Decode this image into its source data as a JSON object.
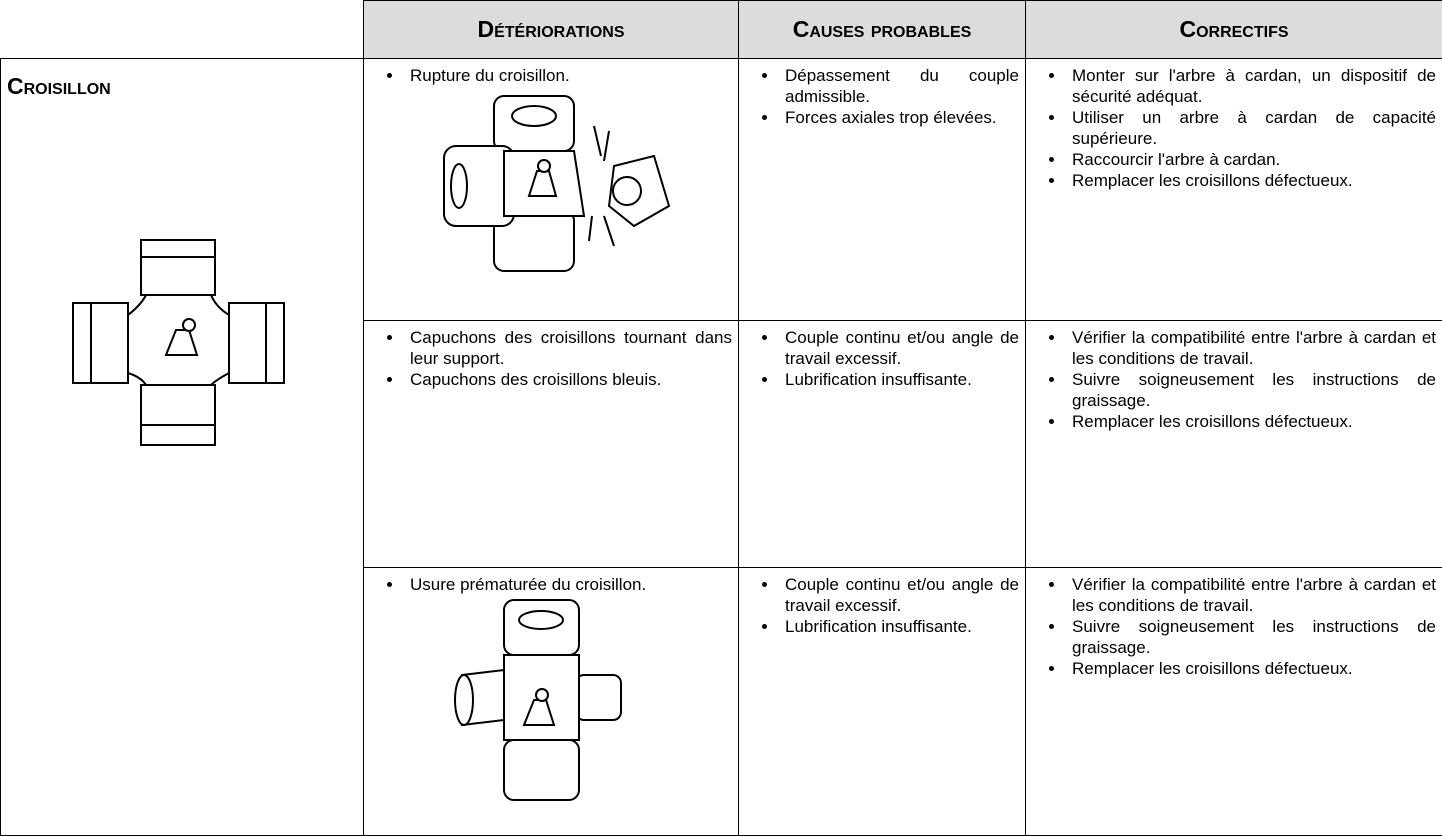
{
  "table": {
    "headers": [
      "Détériorations",
      "Causes probables",
      "Correctifs"
    ],
    "section": "Croisillon",
    "rows": [
      {
        "deteriorations": [
          "Rupture du croisillon."
        ],
        "causes": [
          "Dépassement du couple admissible.",
          "Forces axiales trop élevées."
        ],
        "correctifs": [
          "Monter sur l'arbre à cardan, un dispositif de sécurité adéquat.",
          "Utiliser un arbre à cardan de capacité supérieure.",
          "Raccourcir l'arbre à cardan.",
          "Remplacer les croisillons défectueux."
        ]
      },
      {
        "deteriorations": [
          "Capuchons des croisillons tournant dans leur support.",
          "Capuchons des croisillons bleuis."
        ],
        "causes": [
          "Couple continu et/ou angle de travail excessif.",
          "Lubrification insuffisante."
        ],
        "correctifs": [
          "Vérifier la compatibilité entre l'arbre à cardan et les conditions de travail.",
          "Suivre soigneusement les instructions de graissage.",
          "Remplacer les croisillons défectueux."
        ]
      },
      {
        "deteriorations": [
          "Usure prématurée du croisillon."
        ],
        "causes": [
          "Couple continu et/ou angle de travail excessif.",
          "Lubrification insuffisante."
        ],
        "correctifs": [
          "Vérifier la compatibilité entre l'arbre à cardan et les conditions de travail.",
          "Suivre soigneusement les instructions de graissage.",
          "Remplacer les croisillons défectueux."
        ]
      }
    ]
  }
}
